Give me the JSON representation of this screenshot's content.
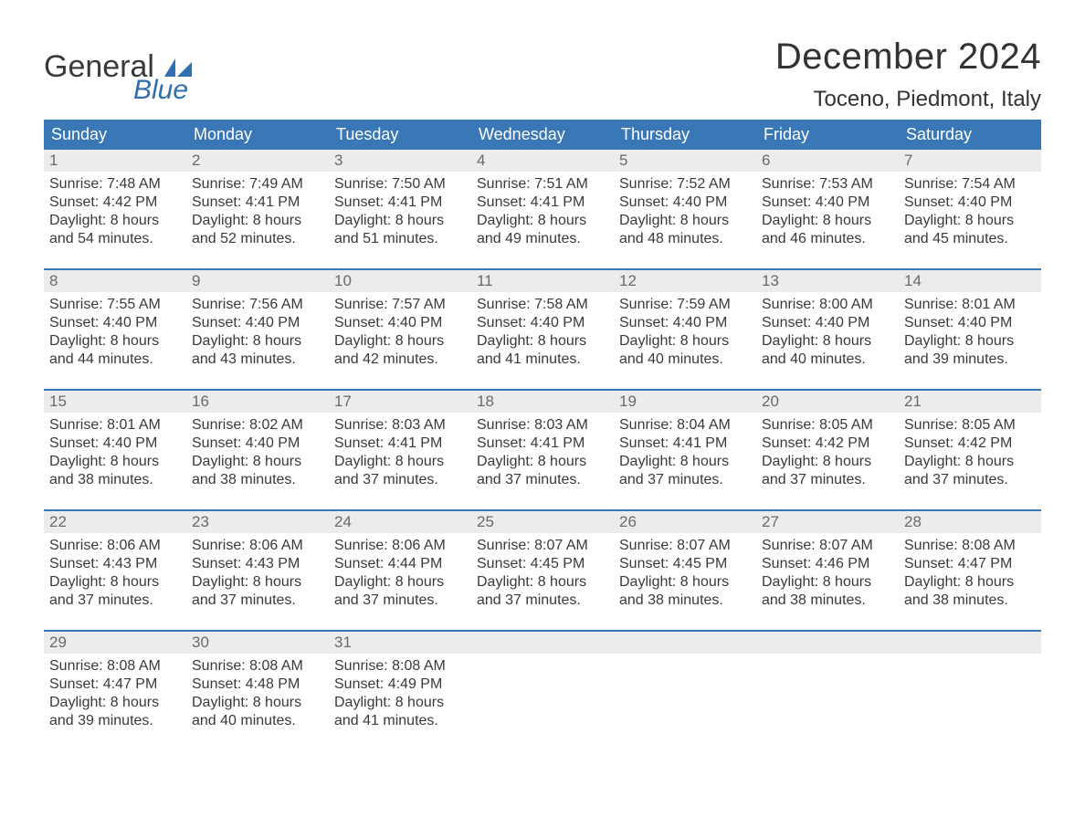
{
  "logo": {
    "text_general": "General",
    "text_blue": "Blue",
    "flag_color": "#2f6fb0",
    "general_color": "#3a3a3a",
    "blue_color": "#2f6fb0"
  },
  "header": {
    "month_title": "December 2024",
    "location": "Toceno, Piedmont, Italy",
    "title_fontsize": 40,
    "location_fontsize": 24,
    "title_color": "#333333"
  },
  "colors": {
    "header_row_bg": "#3a77b6",
    "header_row_text": "#ffffff",
    "day_number_bg": "#ececec",
    "day_number_text": "#6a6a6a",
    "body_text": "#3a3a3a",
    "week_divider": "#3a77b6",
    "background": "#ffffff"
  },
  "day_headers": [
    "Sunday",
    "Monday",
    "Tuesday",
    "Wednesday",
    "Thursday",
    "Friday",
    "Saturday"
  ],
  "weeks": [
    [
      {
        "n": "1",
        "sunrise": "7:48 AM",
        "sunset": "4:42 PM",
        "dlh": "8",
        "dlm": "54"
      },
      {
        "n": "2",
        "sunrise": "7:49 AM",
        "sunset": "4:41 PM",
        "dlh": "8",
        "dlm": "52"
      },
      {
        "n": "3",
        "sunrise": "7:50 AM",
        "sunset": "4:41 PM",
        "dlh": "8",
        "dlm": "51"
      },
      {
        "n": "4",
        "sunrise": "7:51 AM",
        "sunset": "4:41 PM",
        "dlh": "8",
        "dlm": "49"
      },
      {
        "n": "5",
        "sunrise": "7:52 AM",
        "sunset": "4:40 PM",
        "dlh": "8",
        "dlm": "48"
      },
      {
        "n": "6",
        "sunrise": "7:53 AM",
        "sunset": "4:40 PM",
        "dlh": "8",
        "dlm": "46"
      },
      {
        "n": "7",
        "sunrise": "7:54 AM",
        "sunset": "4:40 PM",
        "dlh": "8",
        "dlm": "45"
      }
    ],
    [
      {
        "n": "8",
        "sunrise": "7:55 AM",
        "sunset": "4:40 PM",
        "dlh": "8",
        "dlm": "44"
      },
      {
        "n": "9",
        "sunrise": "7:56 AM",
        "sunset": "4:40 PM",
        "dlh": "8",
        "dlm": "43"
      },
      {
        "n": "10",
        "sunrise": "7:57 AM",
        "sunset": "4:40 PM",
        "dlh": "8",
        "dlm": "42"
      },
      {
        "n": "11",
        "sunrise": "7:58 AM",
        "sunset": "4:40 PM",
        "dlh": "8",
        "dlm": "41"
      },
      {
        "n": "12",
        "sunrise": "7:59 AM",
        "sunset": "4:40 PM",
        "dlh": "8",
        "dlm": "40"
      },
      {
        "n": "13",
        "sunrise": "8:00 AM",
        "sunset": "4:40 PM",
        "dlh": "8",
        "dlm": "40"
      },
      {
        "n": "14",
        "sunrise": "8:01 AM",
        "sunset": "4:40 PM",
        "dlh": "8",
        "dlm": "39"
      }
    ],
    [
      {
        "n": "15",
        "sunrise": "8:01 AM",
        "sunset": "4:40 PM",
        "dlh": "8",
        "dlm": "38"
      },
      {
        "n": "16",
        "sunrise": "8:02 AM",
        "sunset": "4:40 PM",
        "dlh": "8",
        "dlm": "38"
      },
      {
        "n": "17",
        "sunrise": "8:03 AM",
        "sunset": "4:41 PM",
        "dlh": "8",
        "dlm": "37"
      },
      {
        "n": "18",
        "sunrise": "8:03 AM",
        "sunset": "4:41 PM",
        "dlh": "8",
        "dlm": "37"
      },
      {
        "n": "19",
        "sunrise": "8:04 AM",
        "sunset": "4:41 PM",
        "dlh": "8",
        "dlm": "37"
      },
      {
        "n": "20",
        "sunrise": "8:05 AM",
        "sunset": "4:42 PM",
        "dlh": "8",
        "dlm": "37"
      },
      {
        "n": "21",
        "sunrise": "8:05 AM",
        "sunset": "4:42 PM",
        "dlh": "8",
        "dlm": "37"
      }
    ],
    [
      {
        "n": "22",
        "sunrise": "8:06 AM",
        "sunset": "4:43 PM",
        "dlh": "8",
        "dlm": "37"
      },
      {
        "n": "23",
        "sunrise": "8:06 AM",
        "sunset": "4:43 PM",
        "dlh": "8",
        "dlm": "37"
      },
      {
        "n": "24",
        "sunrise": "8:06 AM",
        "sunset": "4:44 PM",
        "dlh": "8",
        "dlm": "37"
      },
      {
        "n": "25",
        "sunrise": "8:07 AM",
        "sunset": "4:45 PM",
        "dlh": "8",
        "dlm": "37"
      },
      {
        "n": "26",
        "sunrise": "8:07 AM",
        "sunset": "4:45 PM",
        "dlh": "8",
        "dlm": "38"
      },
      {
        "n": "27",
        "sunrise": "8:07 AM",
        "sunset": "4:46 PM",
        "dlh": "8",
        "dlm": "38"
      },
      {
        "n": "28",
        "sunrise": "8:08 AM",
        "sunset": "4:47 PM",
        "dlh": "8",
        "dlm": "38"
      }
    ],
    [
      {
        "n": "29",
        "sunrise": "8:08 AM",
        "sunset": "4:47 PM",
        "dlh": "8",
        "dlm": "39"
      },
      {
        "n": "30",
        "sunrise": "8:08 AM",
        "sunset": "4:48 PM",
        "dlh": "8",
        "dlm": "40"
      },
      {
        "n": "31",
        "sunrise": "8:08 AM",
        "sunset": "4:49 PM",
        "dlh": "8",
        "dlm": "41"
      },
      null,
      null,
      null,
      null
    ]
  ],
  "labels": {
    "sunrise_prefix": "Sunrise: ",
    "sunset_prefix": "Sunset: ",
    "daylight_prefix": "Daylight: ",
    "hours_word": " hours",
    "and_word": "and ",
    "minutes_suffix": " minutes."
  }
}
